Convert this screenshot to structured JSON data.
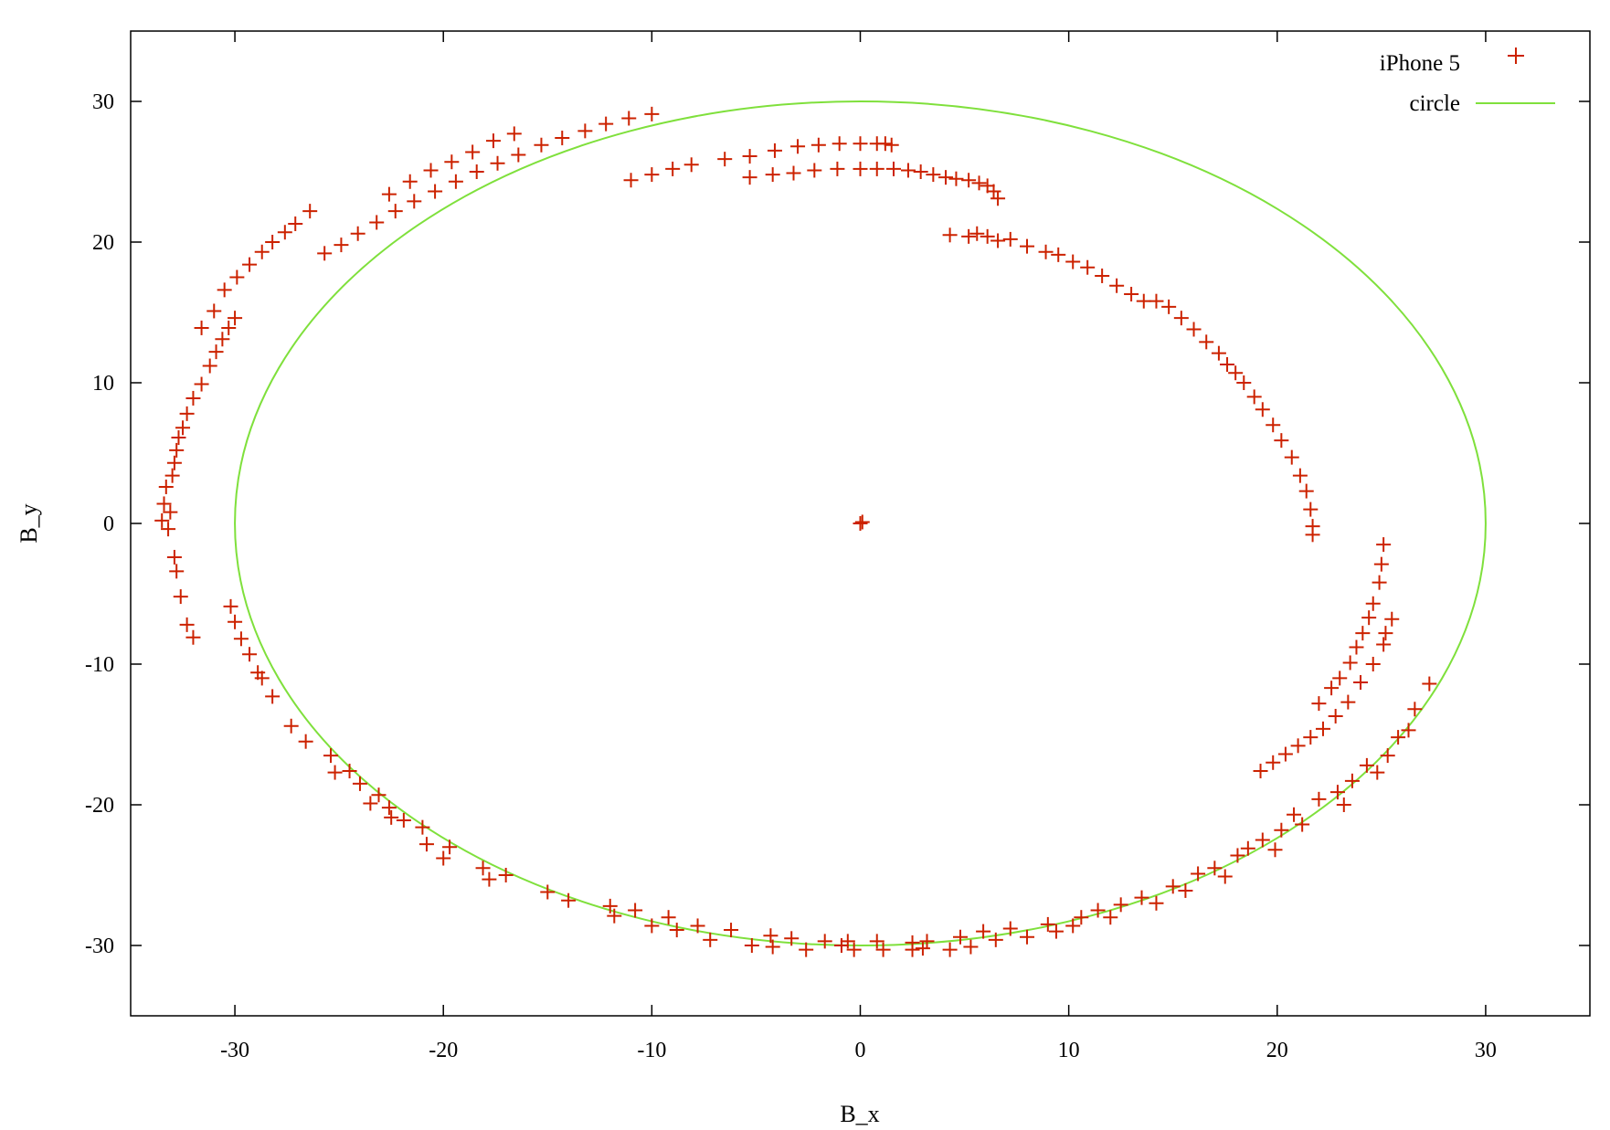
{
  "chart_data": {
    "type": "scatter",
    "title": "",
    "xlabel": "B_x",
    "ylabel": "B_y",
    "xlim": [
      -35,
      35
    ],
    "ylim": [
      -35,
      35
    ],
    "xticks": [
      -30,
      -20,
      -10,
      0,
      10,
      20,
      30
    ],
    "yticks": [
      -30,
      -20,
      -10,
      0,
      10,
      20,
      30
    ],
    "grid": false,
    "legend_position": "top-right",
    "colors": {
      "points": "#cc2200",
      "circle": "#7fe03c",
      "axes": "#000000"
    },
    "series": [
      {
        "name": "iPhone 5",
        "kind": "points",
        "marker": "plus",
        "points": [
          [
            0,
            0
          ],
          [
            0.1,
            0.1
          ],
          [
            -33.5,
            0.2
          ],
          [
            -33.4,
            1.4
          ],
          [
            -33.3,
            2.6
          ],
          [
            -33.2,
            -0.4
          ],
          [
            -33.1,
            0.8
          ],
          [
            -33.0,
            3.4
          ],
          [
            -32.9,
            4.3
          ],
          [
            -32.8,
            5.2
          ],
          [
            -32.7,
            6.1
          ],
          [
            -32.5,
            6.8
          ],
          [
            -32.3,
            7.8
          ],
          [
            -32.0,
            8.9
          ],
          [
            -31.6,
            9.9
          ],
          [
            -31.2,
            11.2
          ],
          [
            -30.9,
            12.2
          ],
          [
            -30.6,
            13.1
          ],
          [
            -30.3,
            13.9
          ],
          [
            -30.0,
            14.6
          ],
          [
            -31.0,
            15.1
          ],
          [
            -31.6,
            13.9
          ],
          [
            -30.5,
            16.6
          ],
          [
            -29.9,
            17.5
          ],
          [
            -29.3,
            18.4
          ],
          [
            -28.7,
            19.3
          ],
          [
            -28.2,
            20.0
          ],
          [
            -27.6,
            20.7
          ],
          [
            -27.1,
            21.3
          ],
          [
            -26.4,
            22.2
          ],
          [
            -32.9,
            -2.4
          ],
          [
            -32.8,
            -3.4
          ],
          [
            -32.6,
            -5.2
          ],
          [
            -32.3,
            -7.2
          ],
          [
            -32.0,
            -8.1
          ],
          [
            -30.2,
            -5.9
          ],
          [
            -30.0,
            -7.0
          ],
          [
            -29.7,
            -8.2
          ],
          [
            -29.3,
            -9.3
          ],
          [
            -28.9,
            -10.6
          ],
          [
            -28.7,
            -11.0
          ],
          [
            -28.2,
            -12.3
          ],
          [
            -27.3,
            -14.4
          ],
          [
            -26.6,
            -15.5
          ],
          [
            -25.4,
            -16.5
          ],
          [
            -25.2,
            -17.7
          ],
          [
            -24.5,
            -17.6
          ],
          [
            -24.0,
            -18.5
          ],
          [
            -23.5,
            -19.9
          ],
          [
            -23.1,
            -19.3
          ],
          [
            -22.6,
            -20.2
          ],
          [
            -22.5,
            -20.9
          ],
          [
            -21.9,
            -21.1
          ],
          [
            -21.0,
            -21.6
          ],
          [
            -20.8,
            -22.8
          ],
          [
            -20.0,
            -23.8
          ],
          [
            -19.7,
            -23.0
          ],
          [
            -18.1,
            -24.5
          ],
          [
            -17.8,
            -25.3
          ],
          [
            -17.0,
            -25.0
          ],
          [
            -15.0,
            -26.2
          ],
          [
            -14.0,
            -26.8
          ],
          [
            -12.0,
            -27.2
          ],
          [
            -11.8,
            -27.9
          ],
          [
            -10.8,
            -27.5
          ],
          [
            -10.0,
            -28.6
          ],
          [
            -9.2,
            -28.0
          ],
          [
            -8.8,
            -28.9
          ],
          [
            -7.8,
            -28.6
          ],
          [
            -7.2,
            -29.6
          ],
          [
            -6.2,
            -28.9
          ],
          [
            -5.2,
            -30.0
          ],
          [
            -4.3,
            -29.3
          ],
          [
            -4.2,
            -30.1
          ],
          [
            -3.3,
            -29.5
          ],
          [
            -2.6,
            -30.3
          ],
          [
            -1.7,
            -29.7
          ],
          [
            -0.9,
            -30.0
          ],
          [
            -0.6,
            -29.7
          ],
          [
            -0.3,
            -30.3
          ],
          [
            0.8,
            -29.7
          ],
          [
            1.1,
            -30.3
          ],
          [
            2.5,
            -29.8
          ],
          [
            2.5,
            -30.3
          ],
          [
            3.0,
            -30.2
          ],
          [
            3.2,
            -29.7
          ],
          [
            4.3,
            -30.3
          ],
          [
            4.8,
            -29.4
          ],
          [
            5.3,
            -30.1
          ],
          [
            5.9,
            -29.0
          ],
          [
            6.5,
            -29.6
          ],
          [
            7.2,
            -28.8
          ],
          [
            8.0,
            -29.4
          ],
          [
            9.0,
            -28.5
          ],
          [
            9.4,
            -29.0
          ],
          [
            10.2,
            -28.6
          ],
          [
            10.6,
            -28.0
          ],
          [
            11.4,
            -27.5
          ],
          [
            12.0,
            -28.0
          ],
          [
            12.5,
            -27.1
          ],
          [
            13.5,
            -26.6
          ],
          [
            14.2,
            -27.0
          ],
          [
            15.0,
            -25.8
          ],
          [
            15.6,
            -26.1
          ],
          [
            16.2,
            -24.9
          ],
          [
            17.0,
            -24.5
          ],
          [
            17.5,
            -25.1
          ],
          [
            18.1,
            -23.6
          ],
          [
            18.6,
            -23.1
          ],
          [
            19.3,
            -22.5
          ],
          [
            19.9,
            -23.2
          ],
          [
            20.2,
            -21.8
          ],
          [
            20.8,
            -20.7
          ],
          [
            21.2,
            -21.4
          ],
          [
            22.0,
            -19.6
          ],
          [
            22.9,
            -19.1
          ],
          [
            23.2,
            -20.0
          ],
          [
            23.6,
            -18.3
          ],
          [
            24.3,
            -17.2
          ],
          [
            24.8,
            -17.7
          ],
          [
            25.3,
            -16.5
          ],
          [
            25.8,
            -15.2
          ],
          [
            26.3,
            -14.7
          ],
          [
            26.6,
            -13.2
          ],
          [
            27.3,
            -11.4
          ],
          [
            22.0,
            -12.8
          ],
          [
            22.6,
            -11.7
          ],
          [
            23.0,
            -11.0
          ],
          [
            23.5,
            -9.9
          ],
          [
            23.8,
            -8.8
          ],
          [
            24.1,
            -7.8
          ],
          [
            24.4,
            -6.7
          ],
          [
            24.6,
            -5.7
          ],
          [
            24.9,
            -4.2
          ],
          [
            25.0,
            -2.9
          ],
          [
            25.1,
            -1.5
          ],
          [
            19.2,
            -17.6
          ],
          [
            19.8,
            -17.0
          ],
          [
            20.4,
            -16.4
          ],
          [
            21.0,
            -15.8
          ],
          [
            21.6,
            -15.2
          ],
          [
            22.2,
            -14.6
          ],
          [
            22.8,
            -13.7
          ],
          [
            23.4,
            -12.7
          ],
          [
            24.0,
            -11.3
          ],
          [
            24.6,
            -10.0
          ],
          [
            25.1,
            -8.6
          ],
          [
            25.5,
            -6.8
          ],
          [
            25.2,
            -7.8
          ],
          [
            4.3,
            20.5
          ],
          [
            5.2,
            20.4
          ],
          [
            5.6,
            20.6
          ],
          [
            6.1,
            20.4
          ],
          [
            6.6,
            20.1
          ],
          [
            7.2,
            20.2
          ],
          [
            8.0,
            19.7
          ],
          [
            8.9,
            19.3
          ],
          [
            9.5,
            19.1
          ],
          [
            10.2,
            18.6
          ],
          [
            10.9,
            18.2
          ],
          [
            11.6,
            17.6
          ],
          [
            12.3,
            16.9
          ],
          [
            13.0,
            16.3
          ],
          [
            13.6,
            15.8
          ],
          [
            14.2,
            15.8
          ],
          [
            14.8,
            15.4
          ],
          [
            15.4,
            14.6
          ],
          [
            16.0,
            13.8
          ],
          [
            16.6,
            12.9
          ],
          [
            17.2,
            12.1
          ],
          [
            17.6,
            11.3
          ],
          [
            18.0,
            10.7
          ],
          [
            18.4,
            10.0
          ],
          [
            18.9,
            9.0
          ],
          [
            19.3,
            8.1
          ],
          [
            19.8,
            7.0
          ],
          [
            20.2,
            5.9
          ],
          [
            20.7,
            4.7
          ],
          [
            21.1,
            3.4
          ],
          [
            21.4,
            2.3
          ],
          [
            21.6,
            1.0
          ],
          [
            21.7,
            -0.2
          ],
          [
            21.7,
            -0.8
          ],
          [
            -10.0,
            29.1
          ],
          [
            -11.1,
            28.8
          ],
          [
            -12.2,
            28.4
          ],
          [
            -13.2,
            27.9
          ],
          [
            -14.3,
            27.4
          ],
          [
            -15.3,
            26.9
          ],
          [
            -16.4,
            26.2
          ],
          [
            -17.4,
            25.6
          ],
          [
            -18.4,
            25.0
          ],
          [
            -19.4,
            24.3
          ],
          [
            -20.4,
            23.6
          ],
          [
            -21.4,
            22.9
          ],
          [
            -22.3,
            22.2
          ],
          [
            -23.2,
            21.4
          ],
          [
            -24.1,
            20.6
          ],
          [
            -24.9,
            19.8
          ],
          [
            -25.7,
            19.2
          ],
          [
            -16.6,
            27.7
          ],
          [
            -17.6,
            27.2
          ],
          [
            -18.6,
            26.4
          ],
          [
            -19.6,
            25.7
          ],
          [
            -20.6,
            25.1
          ],
          [
            -21.6,
            24.3
          ],
          [
            -22.6,
            23.4
          ],
          [
            -11.0,
            24.4
          ],
          [
            -10.0,
            24.8
          ],
          [
            -9.0,
            25.2
          ],
          [
            -8.1,
            25.5
          ],
          [
            -6.5,
            25.9
          ],
          [
            -5.3,
            26.1
          ],
          [
            -4.1,
            26.5
          ],
          [
            -3.0,
            26.8
          ],
          [
            -2.0,
            26.9
          ],
          [
            -1.0,
            27.0
          ],
          [
            0.0,
            27.0
          ],
          [
            0.8,
            27.0
          ],
          [
            1.2,
            27.0
          ],
          [
            1.5,
            26.9
          ],
          [
            -5.3,
            24.6
          ],
          [
            -4.2,
            24.8
          ],
          [
            -3.2,
            24.9
          ],
          [
            -2.2,
            25.1
          ],
          [
            -1.1,
            25.2
          ],
          [
            0.0,
            25.2
          ],
          [
            0.8,
            25.2
          ],
          [
            1.6,
            25.2
          ],
          [
            2.3,
            25.1
          ],
          [
            2.9,
            25.0
          ],
          [
            3.5,
            24.8
          ],
          [
            4.1,
            24.6
          ],
          [
            4.6,
            24.5
          ],
          [
            5.2,
            24.4
          ],
          [
            5.7,
            24.2
          ],
          [
            6.1,
            24.0
          ],
          [
            6.4,
            23.6
          ],
          [
            6.6,
            23.1
          ]
        ]
      },
      {
        "name": "circle",
        "kind": "line",
        "center": [
          0,
          0
        ],
        "radius": 30
      }
    ]
  }
}
